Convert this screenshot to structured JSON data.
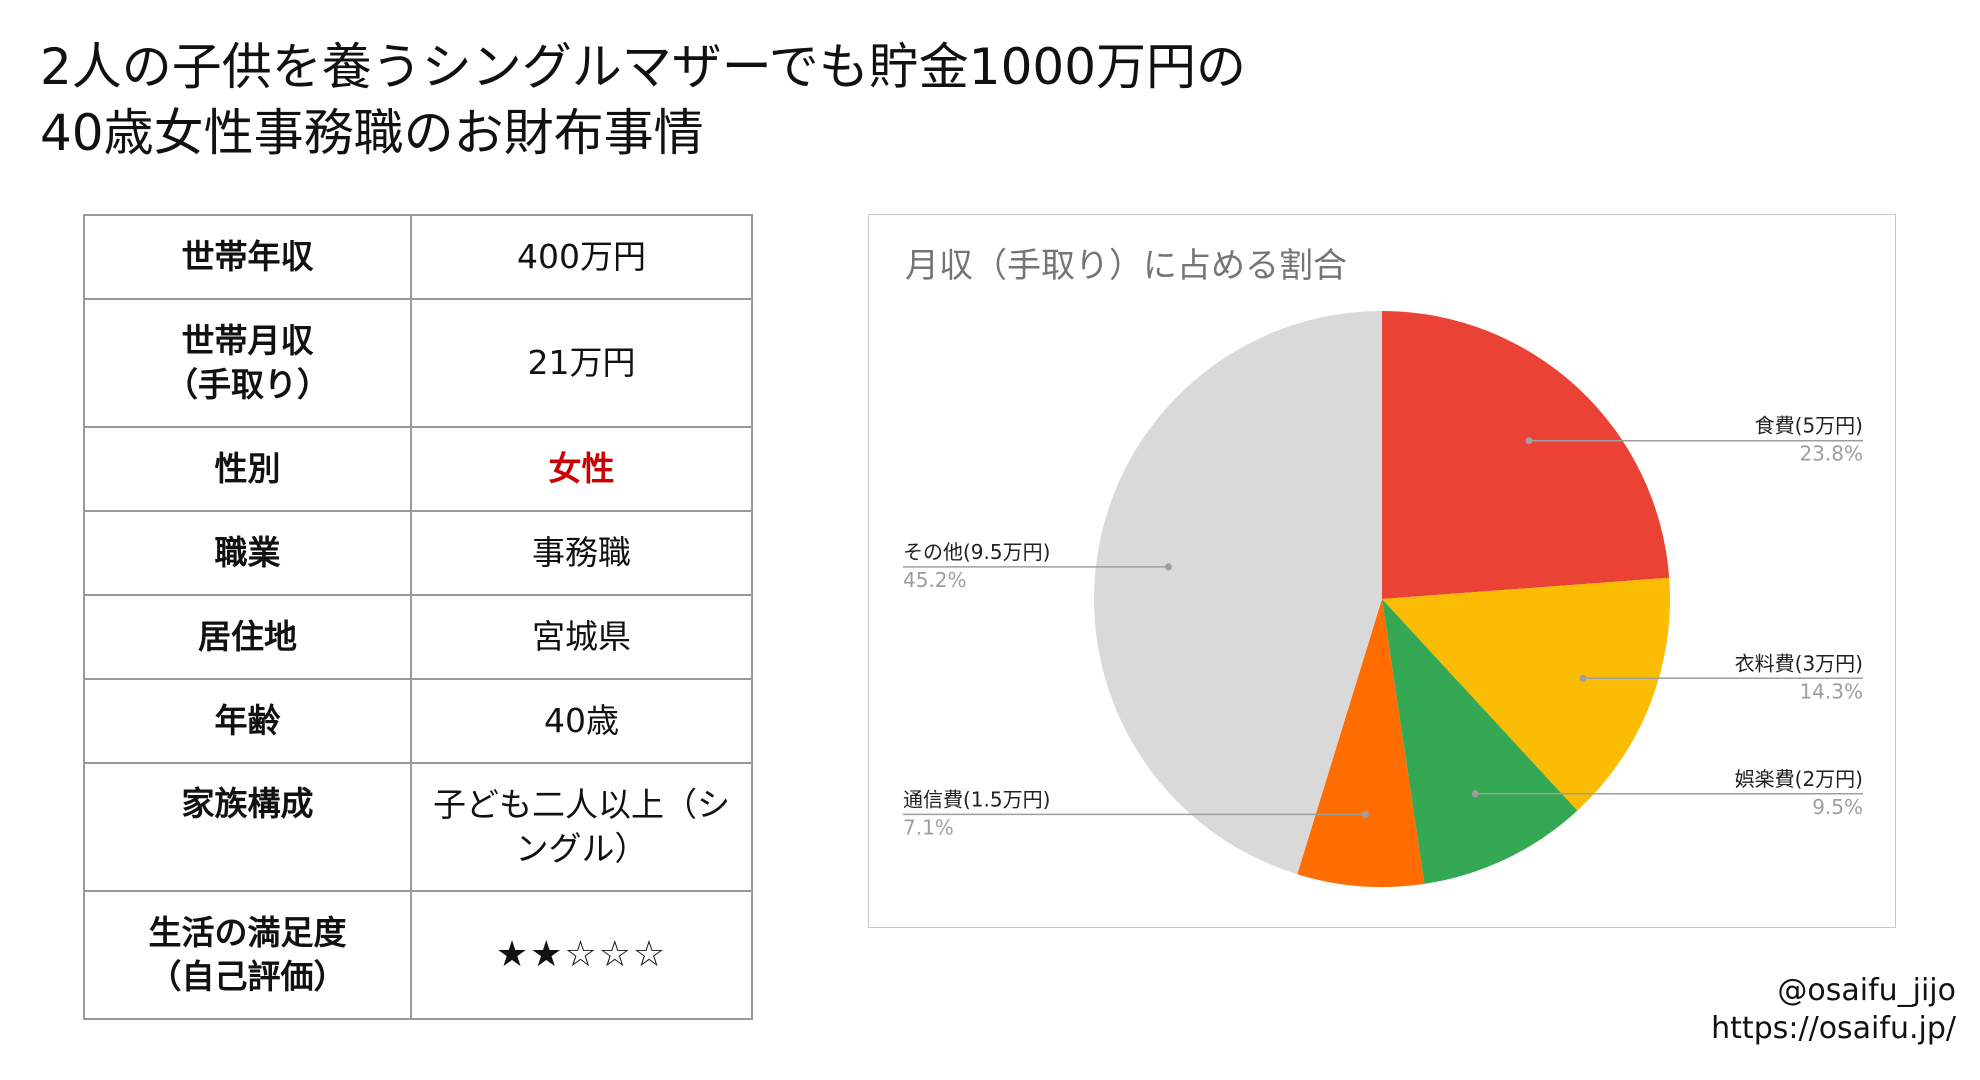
{
  "title": {
    "line1": "2人の子供を養うシングルマザーでも貯金1000万円の",
    "line2": "40歳女性事務職のお財布事情"
  },
  "profile": {
    "rows": [
      {
        "label": "世帯年収",
        "value": "400万円"
      },
      {
        "label": "世帯月収\n（手取り）",
        "value": "21万円"
      },
      {
        "label": "性別",
        "value": "女性"
      },
      {
        "label": "職業",
        "value": "事務職"
      },
      {
        "label": "居住地",
        "value": "宮城県"
      },
      {
        "label": "年齢",
        "value": "40歳"
      },
      {
        "label": "家族構成",
        "value": "子ども二人以上（シ\nングル）"
      },
      {
        "label": "生活の満足度\n（自己評価）",
        "value": "★★☆☆☆"
      }
    ],
    "highlight_color": "#cc0000"
  },
  "chart_data": {
    "type": "pie",
    "title": "月収（手取り）に占める割合",
    "start": "12 o'clock, clockwise",
    "slices": [
      {
        "label": "食費(5万円)",
        "percent_label": "23.8%",
        "value": 23.8,
        "color": "#ea4335"
      },
      {
        "label": "衣料費(3万円)",
        "percent_label": "14.3%",
        "value": 14.3,
        "color": "#fbbc04"
      },
      {
        "label": "娯楽費(2万円)",
        "percent_label": "9.5%",
        "value": 9.5,
        "color": "#34a853"
      },
      {
        "label": "通信費(1.5万円)",
        "percent_label": "7.1%",
        "value": 7.1,
        "color": "#ff6d01"
      },
      {
        "label": "その他(9.5万円)",
        "percent_label": "45.2%",
        "value": 45.2,
        "color": "#d9d9d9"
      }
    ]
  },
  "handle": {
    "account": "@osaifu_jijo",
    "url": "https://osaifu.jp/"
  }
}
